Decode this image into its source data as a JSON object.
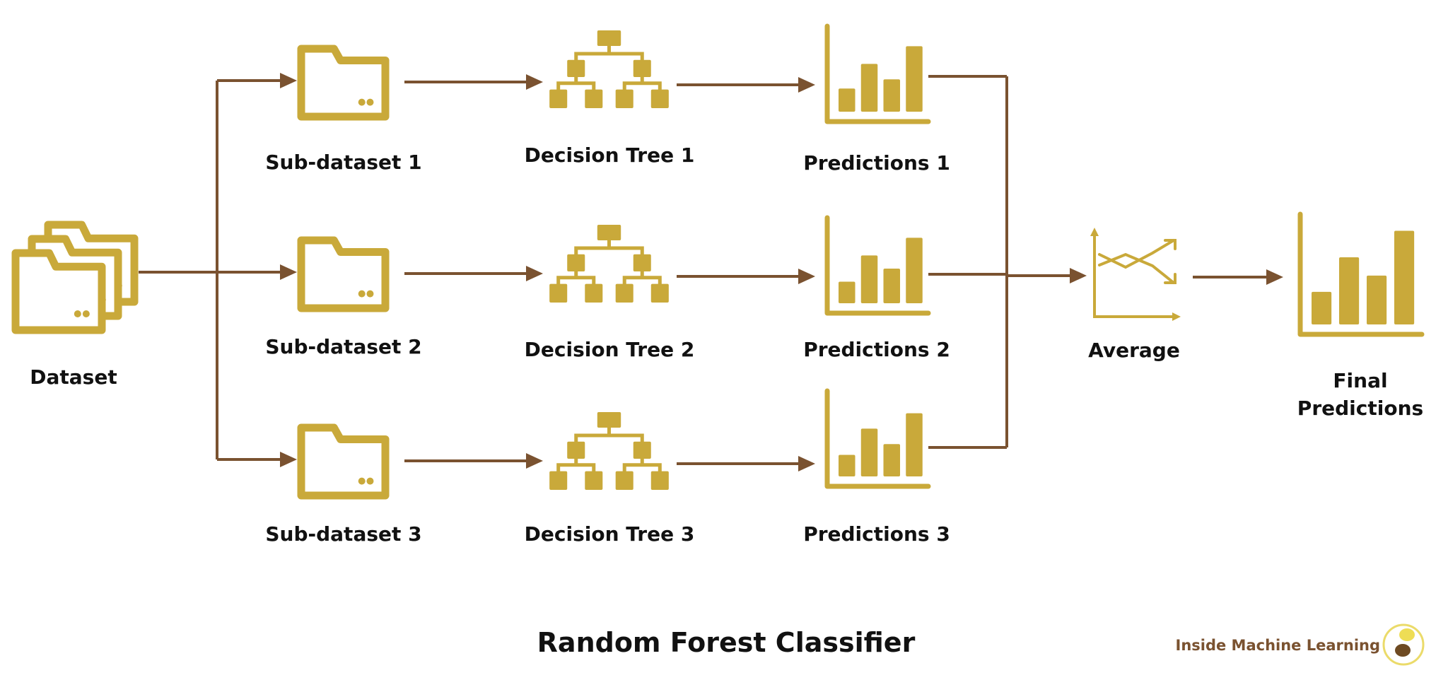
{
  "colors": {
    "icon": "#C9A93A",
    "arrow": "#7A5230",
    "text": "#111111",
    "brand_text": "#7A5230"
  },
  "dataset": {
    "label": "Dataset",
    "icon": "stacked-folders-icon"
  },
  "rows": [
    {
      "subset": "Sub-dataset 1",
      "tree": "Decision Tree 1",
      "predictions": "Predictions 1"
    },
    {
      "subset": "Sub-dataset 2",
      "tree": "Decision Tree 2",
      "predictions": "Predictions 2"
    },
    {
      "subset": "Sub-dataset 3",
      "tree": "Decision Tree 3",
      "predictions": "Predictions 3"
    }
  ],
  "average": {
    "label": "Average",
    "icon": "line-chart-icon"
  },
  "final": {
    "label_line1": "Final",
    "label_line2": "Predictions",
    "icon": "bar-chart-icon"
  },
  "title": "Random Forest Classifier",
  "brand": {
    "name": "Inside Machine Learning",
    "icon": "logo-icon"
  }
}
